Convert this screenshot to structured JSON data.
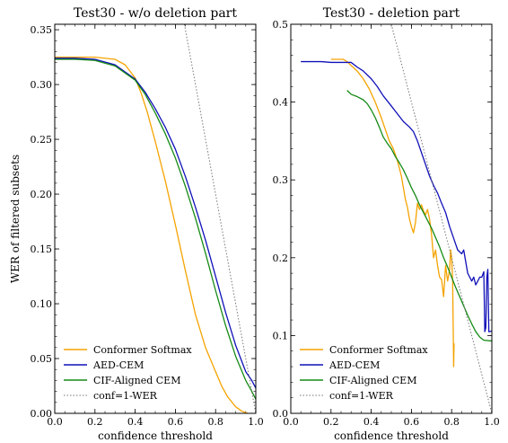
{
  "chart_data": [
    {
      "type": "line",
      "title": "Test30 - w/o deletion part",
      "xlabel": "confidence threshold",
      "ylabel": "WER of filtered subsets",
      "xlim": [
        0.0,
        1.0
      ],
      "ylim": [
        0.0,
        0.355
      ],
      "x_ticks": [
        "0.0",
        "0.2",
        "0.4",
        "0.6",
        "0.8",
        "1.0"
      ],
      "y_ticks": [
        "0.00",
        "0.05",
        "0.10",
        "0.15",
        "0.20",
        "0.25",
        "0.30",
        "0.35"
      ],
      "y_tick_values": [
        0,
        0.05,
        0.1,
        0.15,
        0.2,
        0.25,
        0.3,
        0.35
      ],
      "legend_position": "lower-left",
      "series": [
        {
          "name": "Conformer Softmax",
          "color": "#f5a300",
          "style": "solid",
          "points": [
            [
              0,
              0.325
            ],
            [
              0.1,
              0.325
            ],
            [
              0.2,
              0.325
            ],
            [
              0.3,
              0.323
            ],
            [
              0.35,
              0.318
            ],
            [
              0.4,
              0.306
            ],
            [
              0.43,
              0.292
            ],
            [
              0.46,
              0.275
            ],
            [
              0.5,
              0.248
            ],
            [
              0.55,
              0.212
            ],
            [
              0.6,
              0.172
            ],
            [
              0.65,
              0.13
            ],
            [
              0.7,
              0.09
            ],
            [
              0.75,
              0.06
            ],
            [
              0.8,
              0.038
            ],
            [
              0.83,
              0.025
            ],
            [
              0.86,
              0.015
            ],
            [
              0.9,
              0.006
            ],
            [
              0.93,
              0.002
            ],
            [
              0.96,
              0.0
            ]
          ]
        },
        {
          "name": "AED-CEM",
          "color": "#1010b8",
          "style": "solid",
          "points": [
            [
              0,
              0.324
            ],
            [
              0.1,
              0.324
            ],
            [
              0.2,
              0.323
            ],
            [
              0.3,
              0.318
            ],
            [
              0.4,
              0.305
            ],
            [
              0.45,
              0.293
            ],
            [
              0.5,
              0.278
            ],
            [
              0.55,
              0.261
            ],
            [
              0.6,
              0.241
            ],
            [
              0.65,
              0.216
            ],
            [
              0.7,
              0.188
            ],
            [
              0.75,
              0.158
            ],
            [
              0.8,
              0.125
            ],
            [
              0.85,
              0.092
            ],
            [
              0.9,
              0.062
            ],
            [
              0.95,
              0.038
            ],
            [
              0.98,
              0.03
            ],
            [
              1.0,
              0.023
            ]
          ]
        },
        {
          "name": "CIF-Aligned CEM",
          "color": "#158a15",
          "style": "solid",
          "points": [
            [
              0,
              0.323
            ],
            [
              0.1,
              0.323
            ],
            [
              0.2,
              0.322
            ],
            [
              0.3,
              0.317
            ],
            [
              0.4,
              0.304
            ],
            [
              0.45,
              0.291
            ],
            [
              0.5,
              0.274
            ],
            [
              0.55,
              0.255
            ],
            [
              0.6,
              0.233
            ],
            [
              0.65,
              0.207
            ],
            [
              0.7,
              0.178
            ],
            [
              0.75,
              0.146
            ],
            [
              0.8,
              0.112
            ],
            [
              0.85,
              0.08
            ],
            [
              0.9,
              0.052
            ],
            [
              0.95,
              0.03
            ],
            [
              0.98,
              0.02
            ],
            [
              1.0,
              0.013
            ]
          ]
        },
        {
          "name": "conf=1-WER",
          "color": "#777777",
          "style": "dotted",
          "points": [
            [
              0.645,
              0.355
            ],
            [
              1.0,
              0.0
            ]
          ]
        }
      ]
    },
    {
      "type": "line",
      "title": "Test30 - deletion part",
      "xlabel": "confidence threshold",
      "ylabel": "",
      "xlim": [
        0.0,
        1.0
      ],
      "ylim": [
        0.0,
        0.5
      ],
      "x_ticks": [
        "0.0",
        "0.2",
        "0.4",
        "0.6",
        "0.8",
        "1.0"
      ],
      "y_ticks": [
        "0.0",
        "0.1",
        "0.2",
        "0.3",
        "0.4",
        "0.5"
      ],
      "y_tick_values": [
        0,
        0.1,
        0.2,
        0.3,
        0.4,
        0.5
      ],
      "legend_position": "lower-left",
      "series": [
        {
          "name": "Conformer Softmax",
          "color": "#f5a300",
          "style": "solid",
          "points": [
            [
              0.2,
              0.455
            ],
            [
              0.26,
              0.455
            ],
            [
              0.28,
              0.452
            ],
            [
              0.3,
              0.447
            ],
            [
              0.33,
              0.44
            ],
            [
              0.36,
              0.43
            ],
            [
              0.39,
              0.417
            ],
            [
              0.42,
              0.4
            ],
            [
              0.45,
              0.38
            ],
            [
              0.47,
              0.365
            ],
            [
              0.49,
              0.35
            ],
            [
              0.51,
              0.34
            ],
            [
              0.53,
              0.325
            ],
            [
              0.55,
              0.305
            ],
            [
              0.56,
              0.29
            ],
            [
              0.57,
              0.275
            ],
            [
              0.58,
              0.265
            ],
            [
              0.59,
              0.25
            ],
            [
              0.6,
              0.24
            ],
            [
              0.61,
              0.232
            ],
            [
              0.62,
              0.245
            ],
            [
              0.63,
              0.27
            ],
            [
              0.64,
              0.262
            ],
            [
              0.65,
              0.268
            ],
            [
              0.66,
              0.26
            ],
            [
              0.67,
              0.255
            ],
            [
              0.68,
              0.262
            ],
            [
              0.69,
              0.25
            ],
            [
              0.7,
              0.23
            ],
            [
              0.71,
              0.2
            ],
            [
              0.72,
              0.21
            ],
            [
              0.73,
              0.19
            ],
            [
              0.74,
              0.175
            ],
            [
              0.75,
              0.172
            ],
            [
              0.76,
              0.15
            ],
            [
              0.77,
              0.19
            ],
            [
              0.78,
              0.17
            ],
            [
              0.79,
              0.185
            ],
            [
              0.795,
              0.21
            ],
            [
              0.8,
              0.2
            ],
            [
              0.805,
              0.17
            ],
            [
              0.81,
              0.06
            ],
            [
              0.812,
              0.09
            ]
          ]
        },
        {
          "name": "AED-CEM",
          "color": "#1010b8",
          "style": "solid",
          "points": [
            [
              0.05,
              0.452
            ],
            [
              0.1,
              0.452
            ],
            [
              0.15,
              0.452
            ],
            [
              0.2,
              0.451
            ],
            [
              0.25,
              0.451
            ],
            [
              0.3,
              0.451
            ],
            [
              0.33,
              0.445
            ],
            [
              0.36,
              0.44
            ],
            [
              0.4,
              0.43
            ],
            [
              0.43,
              0.42
            ],
            [
              0.46,
              0.408
            ],
            [
              0.5,
              0.395
            ],
            [
              0.53,
              0.385
            ],
            [
              0.56,
              0.375
            ],
            [
              0.59,
              0.368
            ],
            [
              0.61,
              0.362
            ],
            [
              0.63,
              0.35
            ],
            [
              0.65,
              0.335
            ],
            [
              0.67,
              0.32
            ],
            [
              0.69,
              0.305
            ],
            [
              0.71,
              0.293
            ],
            [
              0.73,
              0.283
            ],
            [
              0.75,
              0.27
            ],
            [
              0.77,
              0.258
            ],
            [
              0.79,
              0.24
            ],
            [
              0.81,
              0.225
            ],
            [
              0.83,
              0.21
            ],
            [
              0.85,
              0.205
            ],
            [
              0.86,
              0.21
            ],
            [
              0.87,
              0.195
            ],
            [
              0.88,
              0.18
            ],
            [
              0.89,
              0.175
            ],
            [
              0.9,
              0.17
            ],
            [
              0.91,
              0.175
            ],
            [
              0.92,
              0.165
            ],
            [
              0.93,
              0.17
            ],
            [
              0.94,
              0.175
            ],
            [
              0.95,
              0.175
            ],
            [
              0.96,
              0.182
            ],
            [
              0.965,
              0.105
            ],
            [
              0.97,
              0.11
            ],
            [
              0.975,
              0.175
            ],
            [
              0.98,
              0.185
            ],
            [
              0.985,
              0.105
            ],
            [
              0.99,
              0.105
            ],
            [
              1.0,
              0.106
            ]
          ]
        },
        {
          "name": "CIF-Aligned CEM",
          "color": "#158a15",
          "style": "solid",
          "points": [
            [
              0.28,
              0.415
            ],
            [
              0.3,
              0.41
            ],
            [
              0.33,
              0.407
            ],
            [
              0.36,
              0.403
            ],
            [
              0.38,
              0.398
            ],
            [
              0.4,
              0.39
            ],
            [
              0.42,
              0.38
            ],
            [
              0.44,
              0.368
            ],
            [
              0.46,
              0.355
            ],
            [
              0.48,
              0.347
            ],
            [
              0.5,
              0.34
            ],
            [
              0.52,
              0.33
            ],
            [
              0.54,
              0.322
            ],
            [
              0.56,
              0.313
            ],
            [
              0.58,
              0.302
            ],
            [
              0.6,
              0.29
            ],
            [
              0.62,
              0.28
            ],
            [
              0.64,
              0.268
            ],
            [
              0.66,
              0.258
            ],
            [
              0.68,
              0.248
            ],
            [
              0.7,
              0.238
            ],
            [
              0.72,
              0.226
            ],
            [
              0.74,
              0.214
            ],
            [
              0.76,
              0.2
            ],
            [
              0.78,
              0.188
            ],
            [
              0.8,
              0.175
            ],
            [
              0.82,
              0.162
            ],
            [
              0.84,
              0.15
            ],
            [
              0.86,
              0.138
            ],
            [
              0.88,
              0.126
            ],
            [
              0.9,
              0.115
            ],
            [
              0.92,
              0.105
            ],
            [
              0.94,
              0.098
            ],
            [
              0.96,
              0.094
            ],
            [
              1.0,
              0.093
            ]
          ]
        },
        {
          "name": "conf=1-WER",
          "color": "#777777",
          "style": "dotted",
          "points": [
            [
              0.5,
              0.5
            ],
            [
              1.0,
              0.0
            ]
          ]
        }
      ]
    }
  ]
}
